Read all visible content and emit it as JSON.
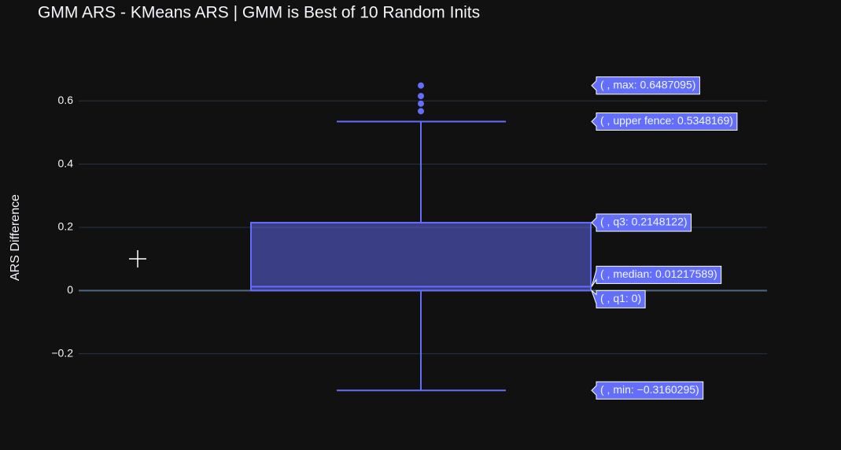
{
  "chart_data": {
    "type": "box",
    "title": "GMM ARS - KMeans ARS | GMM is Best of 10 Random Inits",
    "ylabel": "ARS Difference",
    "ylim": [
      -0.4,
      0.77
    ],
    "yticks": [
      0.6,
      0.4,
      0.2,
      0,
      {
        "value": -0.2,
        "label": "−0.2"
      }
    ],
    "grid": true,
    "color": "#636efa",
    "values": {
      "max": 0.6487095,
      "upperfence": 0.5348169,
      "q3": 0.2148122,
      "median": 0.01217589,
      "q1": 0,
      "min": -0.3160295
    },
    "value_labels": {
      "max": "( , max: 0.6487095)",
      "upperfence": "( , upper fence: 0.5348169)",
      "q3": "( , q3: 0.2148122)",
      "median": "( , median: 0.01217589)",
      "q1": "( , q1: 0)",
      "min": "( , min: −0.3160295)"
    },
    "outliers": [
      0.5675,
      0.5915,
      0.6155,
      0.6487095
    ]
  }
}
